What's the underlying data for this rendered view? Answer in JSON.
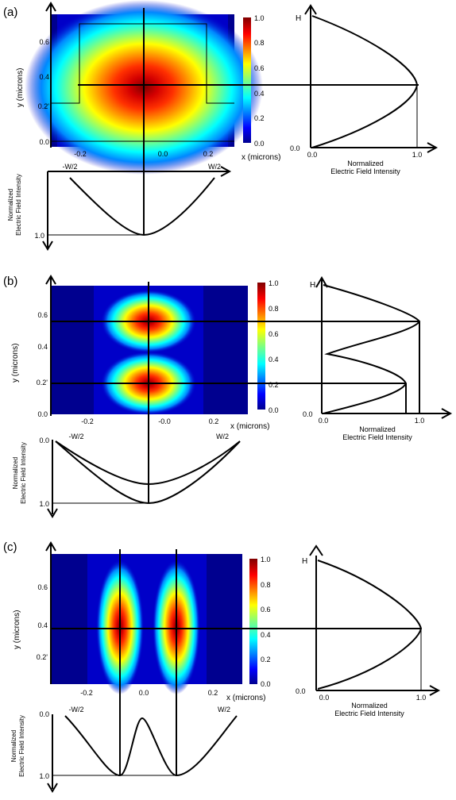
{
  "figure": {
    "panels": [
      {
        "label": "(a)",
        "heatmap": {
          "y_axis_title": "y (microns)",
          "x_axis_title": "x (microns)",
          "x_ticks": [
            "-0.2",
            "0.0",
            "0.2"
          ],
          "y_ticks": [
            "0.0",
            "0.2'",
            "0.4",
            "0.6"
          ],
          "colorbar_ticks": [
            "0.0",
            "0.2",
            "0.4",
            "0.6",
            "0.8",
            "1.0"
          ],
          "mode": "single lobe centered at y 0.35",
          "waveguide_outline": "rib outline shown"
        },
        "vertical_profile": {
          "top_label": "H",
          "x_ticks": [
            "0.0",
            "1.0"
          ],
          "y_origin_label": "0.0",
          "x_title_line1": "Normalized",
          "x_title_line2": "Electric Field Intensity"
        },
        "horizontal_profile": {
          "left_label": "-W/2",
          "right_label": "W/2",
          "bottom_label": "1.0",
          "y_title_line1": "Normalized",
          "y_title_line2": "Electric Field Intensity"
        }
      },
      {
        "label": "(b)",
        "heatmap": {
          "y_axis_title": "y (microns)",
          "x_axis_title": "x (microns)",
          "x_ticks": [
            "-0.2",
            "-0.0",
            "0.2"
          ],
          "y_ticks": [
            "0.0",
            "0.2'",
            "0.4",
            "0.6"
          ],
          "colorbar_ticks": [
            "0.0",
            "0.2",
            "0.4",
            "0.6",
            "0.8",
            "1.0"
          ],
          "mode": "two lobes stacked vertically"
        },
        "vertical_profile": {
          "top_label": "H",
          "x_ticks": [
            "0.0",
            "1.0"
          ],
          "y_origin_label": "0.0",
          "x_title_line1": "Normalized",
          "x_title_line2": "Electric Field Intensity"
        },
        "horizontal_profile": {
          "top_label": "0.0",
          "left_label": "-W/2",
          "right_label": "W/2",
          "bottom_label": "1.0",
          "y_title_line1": "Normalized",
          "y_title_line2": "Electric Field Intensity"
        }
      },
      {
        "label": "(c)",
        "heatmap": {
          "y_axis_title": "y (microns)",
          "x_axis_title": "x (microns)",
          "x_ticks": [
            "-0.2",
            "0.0",
            "0.2"
          ],
          "y_ticks": [
            "0.2'",
            "0.4",
            "0.6"
          ],
          "colorbar_ticks": [
            "0.0",
            "0.2",
            "0.4",
            "0.6",
            "0.8",
            "1.0"
          ],
          "mode": "two lobes side by side"
        },
        "vertical_profile": {
          "top_label": "H",
          "x_ticks": [
            "0.0",
            "1.0"
          ],
          "y_origin_label": "0.0",
          "x_title_line1": "Normalized",
          "x_title_line2": "Electric Field Intensity"
        },
        "horizontal_profile": {
          "top_label": "0.0",
          "left_label": "-W/2",
          "right_label": "W/2",
          "bottom_label": "1.0",
          "y_title_line1": "Normalized",
          "y_title_line2": "Electric Field Intensity"
        }
      }
    ],
    "colormap": "jet"
  }
}
